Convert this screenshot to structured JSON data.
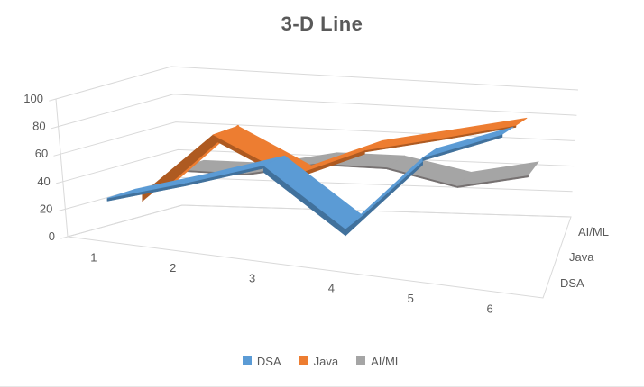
{
  "title": "3-D Line",
  "colors": {
    "text": "#595959",
    "gridline": "#D9D9D9",
    "background": "#FFFFFF",
    "accent_blue": "#5B9BD5",
    "accent_orange": "#ED7D31",
    "accent_gray": "#A5A5A5"
  },
  "axes": {
    "value_axis": {
      "min": 0,
      "max": 100,
      "ticks": [
        0,
        20,
        40,
        60,
        80,
        100
      ]
    },
    "category_axis": {
      "labels": [
        "1",
        "2",
        "3",
        "4",
        "5",
        "6"
      ]
    },
    "series_axis": {
      "labels": [
        "DSA",
        "Java",
        "AI/ML"
      ]
    }
  },
  "legend": {
    "position": "bottom",
    "items": [
      {
        "label": "DSA",
        "color": "#5B9BD5"
      },
      {
        "label": "Java",
        "color": "#ED7D31"
      },
      {
        "label": "AI/ML",
        "color": "#A5A5A5"
      }
    ]
  },
  "chart_data": {
    "type": "line",
    "subtype": "3d-line",
    "title": "3-D Line",
    "categories": [
      1,
      2,
      3,
      4,
      5,
      6
    ],
    "series": [
      {
        "name": "DSA",
        "color": "#5B9BD5",
        "dark": "#41719C",
        "values": [
          30,
          45,
          60,
          25,
          70,
          85
        ]
      },
      {
        "name": "Java",
        "color": "#ED7D31",
        "dark": "#AE5A21",
        "values": [
          25,
          70,
          45,
          65,
          75,
          85
        ]
      },
      {
        "name": "AI/ML",
        "color": "#A5A5A5",
        "dark": "#767171",
        "values": [
          35,
          35,
          45,
          45,
          35,
          45
        ]
      }
    ],
    "xlabel": "",
    "ylabel": "",
    "ylim": [
      0,
      100
    ],
    "grid": true,
    "legend_position": "bottom"
  }
}
